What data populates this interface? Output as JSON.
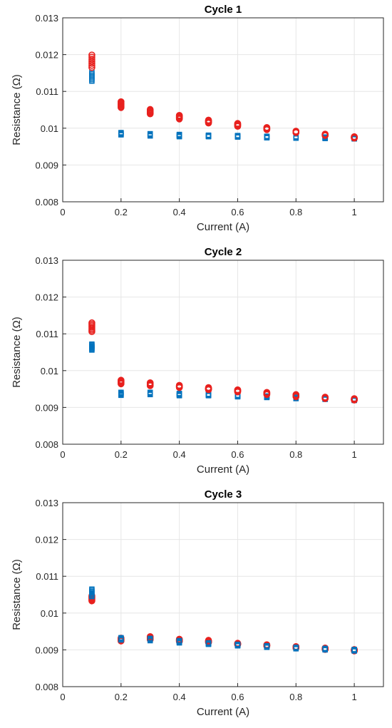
{
  "chart_data": [
    {
      "type": "scatter",
      "title": "Cycle 1",
      "xlabel": "Current (A)",
      "ylabel": "Resistance (Ω)",
      "xlim": [
        0,
        1.1
      ],
      "ylim": [
        0.008,
        0.013
      ],
      "xticks": [
        "0",
        "0.2",
        "0.4",
        "0.6",
        "0.8",
        "1"
      ],
      "yticks": [
        "0.008",
        "0.009",
        "0.01",
        "0.011",
        "0.012",
        "0.013"
      ],
      "grid": true,
      "series": [
        {
          "marker": "circle",
          "color": "#e8211e",
          "x": [
            0.1,
            0.2,
            0.3,
            0.4,
            0.5,
            0.6,
            0.7,
            0.8,
            0.9,
            1.0
          ],
          "y": [
            0.01182,
            0.01064,
            0.01045,
            0.0103,
            0.01018,
            0.01009,
            0.00999,
            0.0099,
            0.00982,
            0.00975
          ],
          "spread": [
            0.00017,
            8e-05,
            6e-05,
            5e-05,
            4e-05,
            4e-05,
            3e-05,
            2e-05,
            2e-05,
            2e-05
          ]
        },
        {
          "marker": "square",
          "color": "#0072bd",
          "x": [
            0.1,
            0.2,
            0.3,
            0.4,
            0.5,
            0.6,
            0.7,
            0.8,
            0.9,
            1.0
          ],
          "y": [
            0.0114,
            0.00985,
            0.00982,
            0.0098,
            0.00979,
            0.00978,
            0.00976,
            0.00975,
            0.00974,
            0.00973
          ],
          "spread": [
            0.00012,
            3e-05,
            3e-05,
            3e-05,
            2e-05,
            2e-05,
            2e-05,
            2e-05,
            2e-05,
            2e-05
          ]
        }
      ]
    },
    {
      "type": "scatter",
      "title": "Cycle 2",
      "xlabel": "Current (A)",
      "ylabel": "Resistance (Ω)",
      "xlim": [
        0,
        1.1
      ],
      "ylim": [
        0.008,
        0.013
      ],
      "xticks": [
        "0",
        "0.2",
        "0.4",
        "0.6",
        "0.8",
        "1"
      ],
      "yticks": [
        "0.008",
        "0.009",
        "0.01",
        "0.011",
        "0.012",
        "0.013"
      ],
      "grid": true,
      "series": [
        {
          "marker": "circle",
          "color": "#e8211e",
          "x": [
            0.1,
            0.2,
            0.3,
            0.4,
            0.5,
            0.6,
            0.7,
            0.8,
            0.9,
            1.0
          ],
          "y": [
            0.01118,
            0.00969,
            0.00963,
            0.00957,
            0.00951,
            0.00945,
            0.00938,
            0.00932,
            0.00926,
            0.00922
          ],
          "spread": [
            0.00012,
            5e-05,
            4e-05,
            3e-05,
            3e-05,
            3e-05,
            3e-05,
            3e-05,
            2e-05,
            2e-05
          ]
        },
        {
          "marker": "square",
          "color": "#0072bd",
          "x": [
            0.1,
            0.2,
            0.3,
            0.4,
            0.5,
            0.6,
            0.7,
            0.8,
            0.9,
            1.0
          ],
          "y": [
            0.01064,
            0.00937,
            0.00938,
            0.00935,
            0.00934,
            0.00931,
            0.00929,
            0.00926,
            0.00924,
            0.00921
          ],
          "spread": [
            8e-05,
            4e-05,
            3e-05,
            3e-05,
            2e-05,
            2e-05,
            2e-05,
            2e-05,
            2e-05,
            2e-05
          ]
        }
      ]
    },
    {
      "type": "scatter",
      "title": "Cycle 3",
      "xlabel": "Current (A)",
      "ylabel": "Resistance (Ω)",
      "xlim": [
        0,
        1.1
      ],
      "ylim": [
        0.008,
        0.013
      ],
      "xticks": [
        "0",
        "0.2",
        "0.4",
        "0.6",
        "0.8",
        "1"
      ],
      "yticks": [
        "0.008",
        "0.009",
        "0.01",
        "0.011",
        "0.012",
        "0.013"
      ],
      "grid": true,
      "series": [
        {
          "marker": "circle",
          "color": "#e8211e",
          "x": [
            0.1,
            0.2,
            0.3,
            0.4,
            0.5,
            0.6,
            0.7,
            0.8,
            0.9,
            1.0
          ],
          "y": [
            0.0104,
            0.00928,
            0.00932,
            0.00926,
            0.00923,
            0.00916,
            0.00912,
            0.00907,
            0.00903,
            0.00899
          ],
          "spread": [
            7e-05,
            4e-05,
            4e-05,
            3e-05,
            3e-05,
            2e-05,
            2e-05,
            2e-05,
            2e-05,
            2e-05
          ]
        },
        {
          "marker": "square",
          "color": "#0072bd",
          "x": [
            0.1,
            0.2,
            0.3,
            0.4,
            0.5,
            0.6,
            0.7,
            0.8,
            0.9,
            1.0
          ],
          "y": [
            0.01055,
            0.0093,
            0.00928,
            0.00922,
            0.00917,
            0.00913,
            0.00909,
            0.00905,
            0.00902,
            0.00899
          ],
          "spread": [
            0.0001,
            3e-05,
            3e-05,
            3e-05,
            2e-05,
            2e-05,
            2e-05,
            2e-05,
            2e-05,
            2e-05
          ]
        }
      ]
    }
  ]
}
